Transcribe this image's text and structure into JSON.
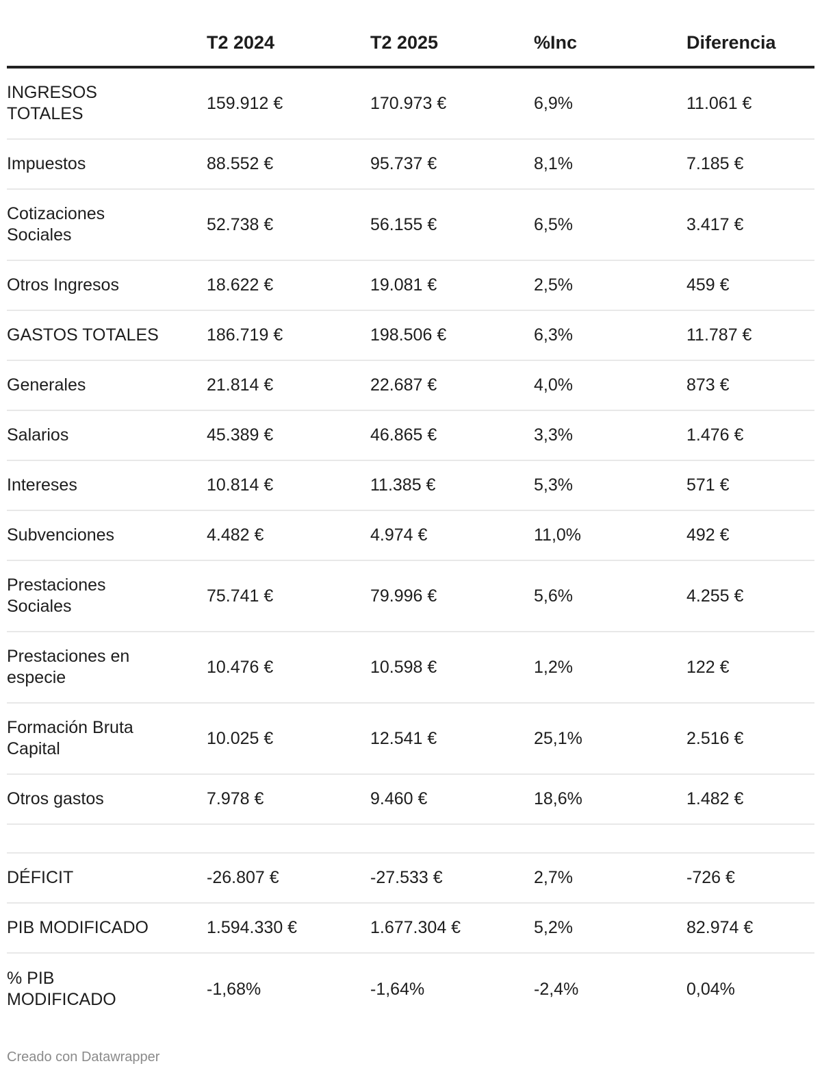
{
  "headers": [
    "",
    "T2 2024",
    "T2 2025",
    "%Inc",
    "Diferencia"
  ],
  "rows": [
    {
      "label": "INGRESOS\nTOTALES",
      "t2024": "159.912 €",
      "t2025": "170.973 €",
      "inc": "6,9%",
      "diff": "11.061 €"
    },
    {
      "label": "Impuestos",
      "t2024": "88.552 €",
      "t2025": "95.737 €",
      "inc": "8,1%",
      "diff": "7.185 €"
    },
    {
      "label": "Cotizaciones\nSociales",
      "t2024": "52.738 €",
      "t2025": "56.155 €",
      "inc": "6,5%",
      "diff": "3.417 €"
    },
    {
      "label": "Otros Ingresos",
      "t2024": "18.622 €",
      "t2025": "19.081 €",
      "inc": "2,5%",
      "diff": "459 €"
    },
    {
      "label": "GASTOS TOTALES",
      "t2024": "186.719 €",
      "t2025": "198.506 €",
      "inc": "6,3%",
      "diff": "11.787 €"
    },
    {
      "label": "Generales",
      "t2024": "21.814 €",
      "t2025": "22.687 €",
      "inc": "4,0%",
      "diff": "873 €"
    },
    {
      "label": "Salarios",
      "t2024": "45.389 €",
      "t2025": "46.865 €",
      "inc": "3,3%",
      "diff": "1.476 €"
    },
    {
      "label": "Intereses",
      "t2024": "10.814 €",
      "t2025": "11.385 €",
      "inc": "5,3%",
      "diff": "571 €"
    },
    {
      "label": "Subvenciones",
      "t2024": "4.482 €",
      "t2025": "4.974 €",
      "inc": "11,0%",
      "diff": "492 €"
    },
    {
      "label": "Prestaciones\nSociales",
      "t2024": "75.741 €",
      "t2025": "79.996 €",
      "inc": "5,6%",
      "diff": "4.255 €"
    },
    {
      "label": "Prestaciones en\nespecie",
      "t2024": "10.476 €",
      "t2025": "10.598 €",
      "inc": "1,2%",
      "diff": "122 €"
    },
    {
      "label": "Formación Bruta\nCapital",
      "t2024": "10.025 €",
      "t2025": "12.541 €",
      "inc": "25,1%",
      "diff": "2.516 €"
    },
    {
      "label": "Otros gastos",
      "t2024": "7.978 €",
      "t2025": "9.460 €",
      "inc": "18,6%",
      "diff": "1.482 €"
    },
    {
      "label": "",
      "t2024": "",
      "t2025": "",
      "inc": "",
      "diff": ""
    },
    {
      "label": "DÉFICIT",
      "t2024": "-26.807 €",
      "t2025": "-27.533 €",
      "inc": "2,7%",
      "diff": "-726 €"
    },
    {
      "label": "PIB MODIFICADO",
      "t2024": "1.594.330 €",
      "t2025": "1.677.304 €",
      "inc": "5,2%",
      "diff": "82.974 €"
    },
    {
      "label": "% PIB\nMODIFICADO",
      "t2024": "-1,68%",
      "t2025": "-1,64%",
      "inc": "-2,4%",
      "diff": "0,04%"
    }
  ],
  "footer": "Creado con Datawrapper"
}
